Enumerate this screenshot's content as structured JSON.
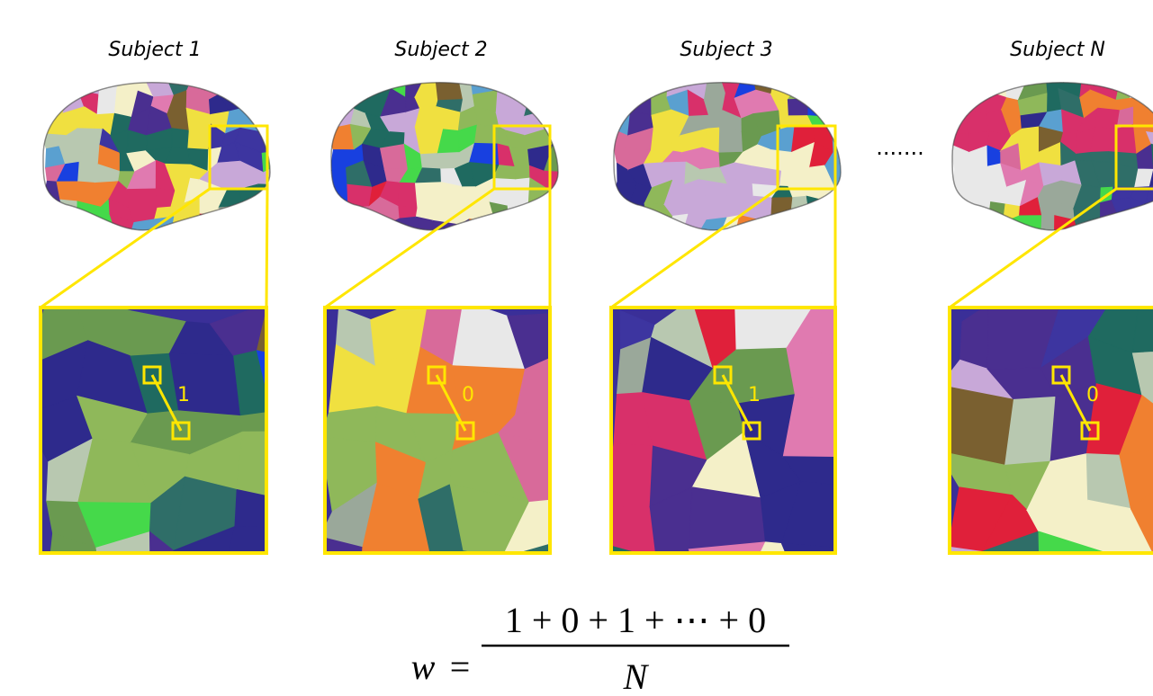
{
  "subjects": [
    {
      "title": "Subject 1",
      "label": "1"
    },
    {
      "title": "Subject 2",
      "label": "0"
    },
    {
      "title": "Subject 3",
      "label": "1"
    },
    {
      "title": "Subject N",
      "label": "0"
    }
  ],
  "ellipsis": ".......",
  "formula": {
    "lhs": "w",
    "equals": "=",
    "numerator": "1 + 0 + 1 + ⋯ + 0",
    "denominator": "N"
  }
}
